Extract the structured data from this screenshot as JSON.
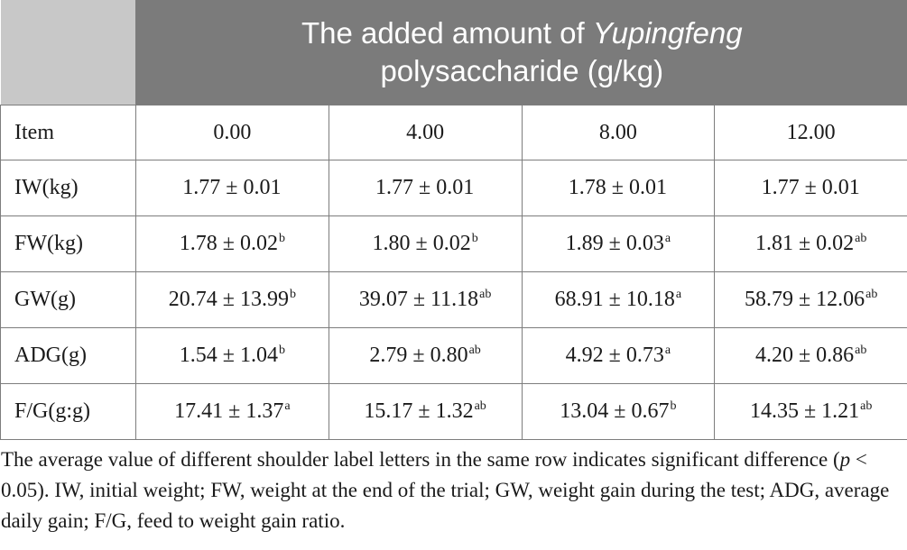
{
  "header": {
    "title_prefix": "The added amount of ",
    "title_italic": "Yupingfeng",
    "title_suffix": "polysaccharide (g/kg)"
  },
  "columns": {
    "item": "Item",
    "c1": "0.00",
    "c2": "4.00",
    "c3": "8.00",
    "c4": "12.00"
  },
  "rows": [
    {
      "item": "IW(kg)",
      "c1": "1.77 ± 0.01",
      "s1": "",
      "c2": "1.77 ± 0.01",
      "s2": "",
      "c3": "1.78 ± 0.01",
      "s3": "",
      "c4": "1.77 ± 0.01",
      "s4": ""
    },
    {
      "item": "FW(kg)",
      "c1": "1.78 ± 0.02",
      "s1": "b",
      "c2": "1.80 ± 0.02",
      "s2": "b",
      "c3": "1.89 ± 0.03",
      "s3": "a",
      "c4": "1.81 ± 0.02",
      "s4": "ab"
    },
    {
      "item": "GW(g)",
      "c1": "20.74 ± 13.99",
      "s1": "b",
      "c2": "39.07 ± 11.18",
      "s2": "ab",
      "c3": "68.91 ± 10.18",
      "s3": "a",
      "c4": "58.79 ± 12.06",
      "s4": "ab"
    },
    {
      "item": "ADG(g)",
      "c1": "1.54 ± 1.04",
      "s1": "b",
      "c2": "2.79 ± 0.80",
      "s2": "ab",
      "c3": "4.92 ± 0.73",
      "s3": "a",
      "c4": "4.20 ± 0.86",
      "s4": "ab"
    },
    {
      "item": "F/G(g:g)",
      "c1": "17.41 ± 1.37",
      "s1": "a",
      "c2": "15.17 ± 1.32",
      "s2": "ab",
      "c3": "13.04 ± 0.67",
      "s3": "b",
      "c4": "14.35 ± 1.21",
      "s4": "ab"
    }
  ],
  "note": {
    "part1": "The average value of different shoulder label letters in the same row indicates significant difference (",
    "p_symbol": "p",
    "part2": " < 0.05). IW, initial weight; FW, weight at the end of the trial; GW, weight gain during the test; ADG, average daily gain; F/G, feed to weight gain ratio."
  },
  "colors": {
    "header_bg": "#7b7b7b",
    "header_corner_bg": "#c8c8c8",
    "header_text": "#ffffff",
    "border": "#7d7d7d",
    "text": "#1a1a1a"
  }
}
